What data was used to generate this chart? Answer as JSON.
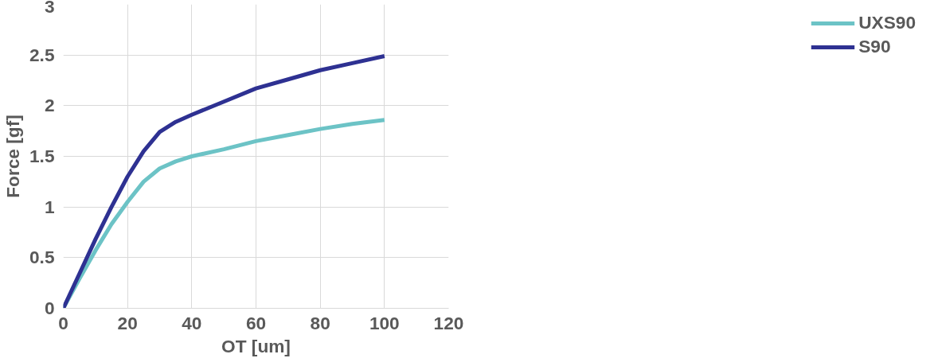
{
  "chart_data": {
    "type": "line",
    "xlabel": "OT [um]",
    "ylabel": "Force [gf]",
    "xlim": [
      0,
      120
    ],
    "xticks": [
      0,
      20,
      40,
      60,
      80,
      100,
      120
    ],
    "ylim": [
      0,
      3
    ],
    "yticks": [
      0,
      0.5,
      1,
      1.5,
      2,
      2.5,
      3
    ],
    "grid": true,
    "legend": "right",
    "marker": "none",
    "line_style": "solid",
    "series": [
      {
        "name": "UXS90",
        "color": "#6cc3c6",
        "x": [
          0,
          5,
          10,
          15,
          20,
          25,
          30,
          35,
          40,
          50,
          60,
          70,
          80,
          90,
          100
        ],
        "values": [
          0,
          0.29,
          0.57,
          0.83,
          1.05,
          1.25,
          1.38,
          1.45,
          1.5,
          1.57,
          1.65,
          1.71,
          1.77,
          1.82,
          1.86
        ]
      },
      {
        "name": "S90",
        "color": "#2e3192",
        "x": [
          0,
          5,
          10,
          15,
          20,
          25,
          30,
          35,
          40,
          50,
          60,
          70,
          80,
          90,
          100
        ],
        "values": [
          0,
          0.34,
          0.68,
          1.0,
          1.3,
          1.55,
          1.74,
          1.84,
          1.91,
          2.04,
          2.17,
          2.26,
          2.35,
          2.42,
          2.49
        ]
      }
    ]
  }
}
